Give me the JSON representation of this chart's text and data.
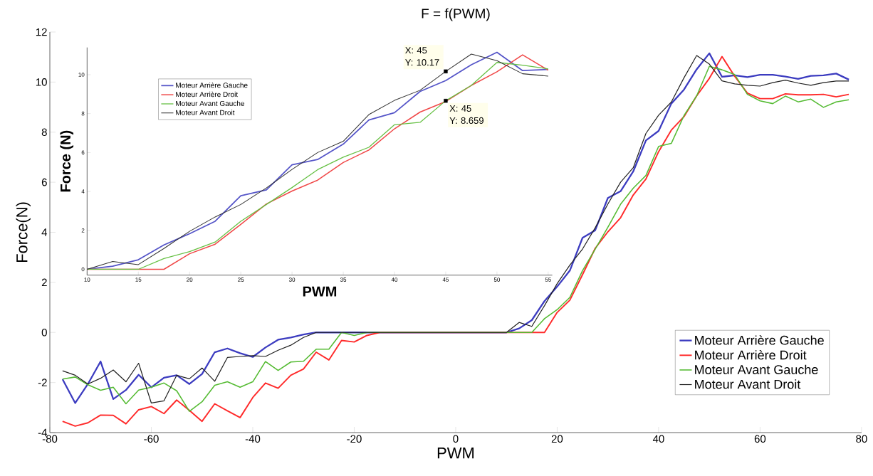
{
  "chart_data": [
    {
      "type": "line",
      "title": "F = f(PWM)",
      "xlabel": "PWM",
      "ylabel": "Force(N)",
      "xlim": [
        -80,
        80
      ],
      "ylim": [
        -4,
        12
      ],
      "xticks": [
        -80,
        -60,
        -40,
        -20,
        0,
        20,
        40,
        60,
        80
      ],
      "yticks": [
        -4,
        -2,
        0,
        2,
        4,
        6,
        8,
        10,
        12
      ],
      "legend": "bottom right",
      "grid": false,
      "x": [
        -77.5,
        -75,
        -72.5,
        -70,
        -67.5,
        -65,
        -62.5,
        -60,
        -57.5,
        -55,
        -52.5,
        -50,
        -47.5,
        -45,
        -42.5,
        -40,
        -37.5,
        -35,
        -32.5,
        -30,
        -27.5,
        -25,
        -22.5,
        -20,
        -17.5,
        -15,
        -12.5,
        -10,
        -7.5,
        -5,
        -2.5,
        0,
        2.5,
        5,
        7.5,
        10,
        12.5,
        15,
        17.5,
        20,
        22.5,
        25,
        27.5,
        30,
        32.5,
        35,
        37.5,
        40,
        42.5,
        45,
        47.5,
        50,
        52.5,
        55,
        57.5,
        60,
        62.5,
        65,
        67.5,
        70,
        72.5,
        75,
        77.5
      ],
      "series": [
        {
          "name": "Moteur Arrière Gauche",
          "color": "#3c3cc0",
          "values": [
            -1.87,
            -2.82,
            -2.06,
            -1.16,
            -2.66,
            -2.3,
            -1.69,
            -2.19,
            -1.81,
            -1.71,
            -2.06,
            -1.66,
            -0.79,
            -0.64,
            -0.83,
            -0.98,
            -0.6,
            -0.29,
            -0.2,
            -0.08,
            0,
            0,
            0,
            0,
            0,
            0,
            0,
            0,
            0,
            0,
            0,
            0,
            0,
            0,
            0,
            0,
            0.16,
            0.49,
            1.25,
            1.83,
            2.47,
            3.78,
            4.08,
            5.37,
            5.64,
            6.43,
            7.67,
            8.05,
            9.14,
            9.7,
            10.51,
            11.15,
            10.21,
            10.27,
            10.2,
            10.29,
            10.29,
            10.22,
            10.13,
            10.25,
            10.27,
            10.34,
            10.1
          ]
        },
        {
          "name": "Moteur Arrière Droit",
          "color": "#ff2a2a",
          "values": [
            -3.55,
            -3.74,
            -3.61,
            -3.3,
            -3.31,
            -3.65,
            -3.09,
            -2.96,
            -3.24,
            -2.7,
            -3.11,
            -3.55,
            -2.85,
            -3.13,
            -3.4,
            -2.6,
            -2.02,
            -2.23,
            -1.71,
            -1.46,
            -0.79,
            -1.1,
            -0.32,
            -0.38,
            -0.12,
            0,
            0,
            0,
            0,
            0,
            0,
            0,
            0,
            0,
            0,
            0,
            0,
            0,
            0,
            0.8,
            1.29,
            2.31,
            3.36,
            4.02,
            4.58,
            5.49,
            6.13,
            7.22,
            8.08,
            8.62,
            9.45,
            10.15,
            11.02,
            10.23,
            9.56,
            9.34,
            9.34,
            9.53,
            9.49,
            9.49,
            9.51,
            9.41,
            9.51
          ]
        },
        {
          "name": "Moteur Avant Gauche",
          "color": "#55bb33",
          "values": [
            -1.86,
            -1.78,
            -2.09,
            -2.31,
            -2.19,
            -2.85,
            -2.3,
            -2.19,
            -2.02,
            -2.33,
            -3.15,
            -2.77,
            -2.11,
            -1.97,
            -2.19,
            -1.97,
            -1.16,
            -1.52,
            -1.18,
            -1.15,
            -0.67,
            -0.67,
            0,
            -0.12,
            0,
            0,
            0,
            0,
            0,
            0,
            0,
            0,
            0,
            0,
            0,
            0,
            0,
            0,
            0.55,
            0.91,
            1.4,
            2.47,
            3.33,
            4.2,
            5.12,
            5.76,
            6.27,
            7.43,
            7.55,
            8.66,
            9.45,
            10.63,
            10.49,
            10.3,
            9.51,
            9.25,
            9.14,
            9.44,
            9.21,
            9.32,
            8.99,
            9.21,
            9.29
          ]
        },
        {
          "name": "Moteur Avant Droit",
          "color": "#202020",
          "values": [
            -1.53,
            -1.71,
            -2.06,
            -1.83,
            -1.5,
            -1.97,
            -1.23,
            -2.82,
            -2.73,
            -1.71,
            -1.85,
            -1.42,
            -1.95,
            -1.0,
            -0.96,
            -0.93,
            -0.96,
            -0.71,
            -0.51,
            -0.2,
            0,
            0,
            0,
            0,
            0,
            0,
            0,
            0,
            0,
            0,
            0,
            0,
            0,
            0,
            0,
            0,
            0.4,
            0.24,
            1.07,
            1.95,
            2.69,
            3.33,
            4.18,
            5.13,
            6.0,
            6.58,
            7.95,
            8.68,
            9.2,
            10.17,
            11.06,
            10.72,
            10.05,
            9.93,
            9.87,
            9.84,
            9.98,
            10.08,
            9.96,
            9.87,
            9.98,
            10.04,
            10.04
          ]
        }
      ]
    },
    {
      "type": "line",
      "xlabel": "PWM",
      "ylabel": "Force (N)",
      "xlim": [
        10,
        55.4
      ],
      "ylim": [
        -0.3,
        11.4
      ],
      "xticks": [
        10,
        15,
        20,
        25,
        30,
        35,
        40,
        45,
        50,
        55
      ],
      "yticks": [
        0,
        2,
        4,
        6,
        8,
        10
      ],
      "legend": "top left",
      "grid": false,
      "x": [
        10,
        12.5,
        15,
        17.5,
        20,
        22.5,
        25,
        27.5,
        30,
        32.5,
        35,
        37.5,
        40,
        42.5,
        45,
        47.5,
        50,
        52.5,
        55
      ],
      "series": [
        {
          "name": "Moteur Arrière Gauche",
          "color": "#5555c8",
          "values": [
            0,
            0.16,
            0.49,
            1.25,
            1.83,
            2.47,
            3.78,
            4.08,
            5.37,
            5.64,
            6.43,
            7.67,
            8.05,
            9.14,
            9.7,
            10.51,
            11.15,
            10.21,
            10.27
          ]
        },
        {
          "name": "Moteur Arrière Droit",
          "color": "#f04848",
          "values": [
            0,
            0,
            0,
            0,
            0.8,
            1.29,
            2.31,
            3.36,
            4.02,
            4.58,
            5.49,
            6.13,
            7.22,
            8.08,
            8.62,
            9.45,
            10.15,
            11.02,
            10.23
          ]
        },
        {
          "name": "Moteur Avant Gauche",
          "color": "#66c044",
          "values": [
            0,
            0,
            0,
            0.55,
            0.91,
            1.4,
            2.47,
            3.33,
            4.2,
            5.12,
            5.76,
            6.27,
            7.43,
            7.55,
            8.66,
            9.45,
            10.63,
            10.49,
            10.3
          ]
        },
        {
          "name": "Moteur Avant Droit",
          "color": "#333333",
          "values": [
            0,
            0.4,
            0.24,
            1.07,
            1.95,
            2.69,
            3.33,
            4.18,
            5.13,
            6.0,
            6.58,
            7.95,
            8.68,
            9.2,
            10.17,
            11.06,
            10.72,
            10.05,
            9.93
          ]
        },
        {
          "type": "scatter",
          "marker": "square",
          "color": "#000000",
          "x": [
            45,
            45
          ],
          "values": [
            10.17,
            8.659
          ]
        }
      ],
      "annotations": [
        "X: 45",
        "Y: 10.17",
        "X: 45",
        "Y: 8.659"
      ]
    }
  ]
}
